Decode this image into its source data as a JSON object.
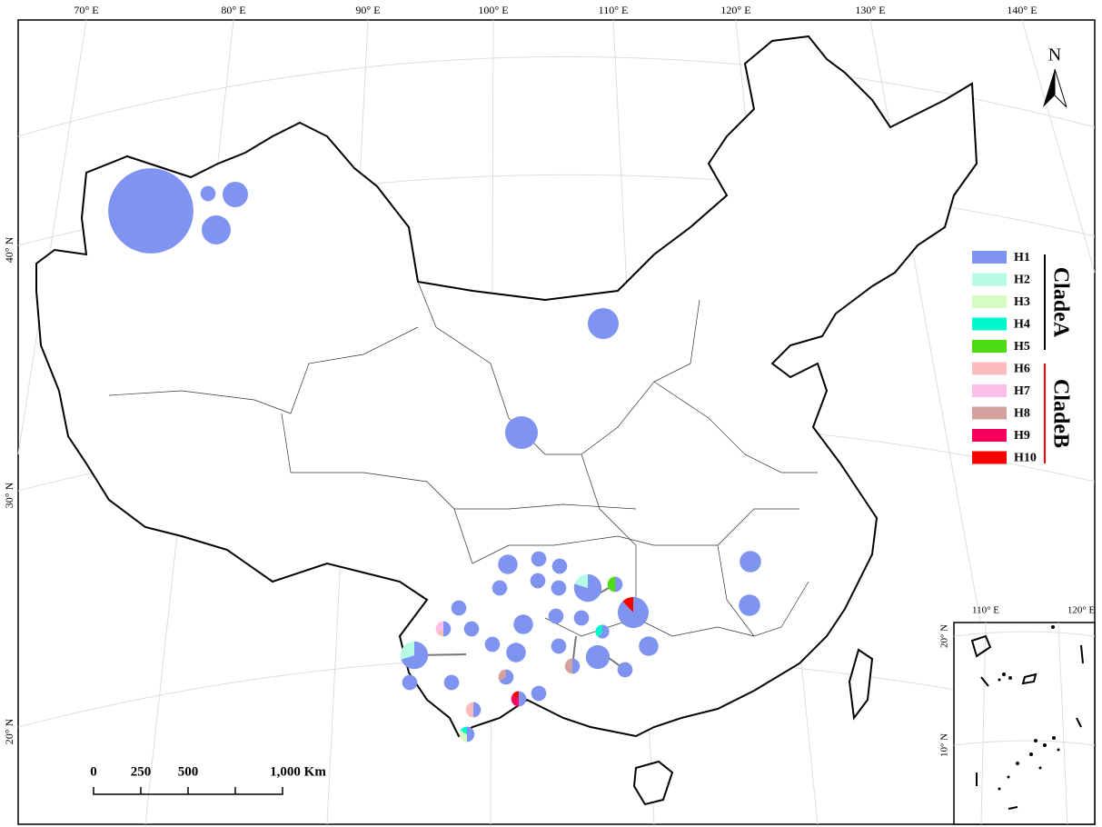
{
  "map": {
    "longitude_labels": [
      "70° E",
      "80° E",
      "90° E",
      "100° E",
      "110° E",
      "120° E",
      "130° E",
      "140° E"
    ],
    "latitude_labels": [
      "40° N",
      "30° N",
      "20° N"
    ],
    "inset": {
      "longitude_labels": [
        "110° E",
        "120° E"
      ],
      "latitude_labels": [
        "20° N",
        "10° N"
      ]
    },
    "north_label": "N",
    "scale_bar": {
      "labels": [
        "0",
        "250",
        "500",
        "1,000 Km"
      ]
    },
    "legend": {
      "haplotypes": [
        {
          "name": "H1",
          "color": "#7f93f0"
        },
        {
          "name": "H2",
          "color": "#b5fbe6"
        },
        {
          "name": "H3",
          "color": "#d6fcc2"
        },
        {
          "name": "H4",
          "color": "#00f8cc"
        },
        {
          "name": "H5",
          "color": "#4cdc10"
        },
        {
          "name": "H6",
          "color": "#fcbcbc"
        },
        {
          "name": "H7",
          "color": "#fcbde6"
        },
        {
          "name": "H8",
          "color": "#d4a19e"
        },
        {
          "name": "H9",
          "color": "#f5005a"
        },
        {
          "name": "H10",
          "color": "#fb0000"
        }
      ],
      "clades": [
        {
          "name": "CladeA",
          "color": "#000000"
        },
        {
          "name": "CladeB",
          "color": "#ff0000"
        }
      ]
    },
    "populations": [
      {
        "counts": [
          190,
          0,
          0,
          0,
          0,
          0,
          0,
          0,
          0,
          0
        ]
      },
      {
        "counts": [
          6,
          0,
          0,
          0,
          0,
          0,
          0,
          0,
          0,
          0
        ]
      },
      {
        "counts": [
          17,
          0,
          0,
          0,
          0,
          0,
          0,
          0,
          0,
          0
        ]
      },
      {
        "counts": [
          22,
          0,
          0,
          0,
          0,
          0,
          0,
          0,
          0,
          0
        ]
      },
      {
        "counts": [
          25,
          0,
          0,
          0,
          0,
          0,
          0,
          0,
          0,
          0
        ]
      },
      {
        "counts": [
          28,
          0,
          0,
          0,
          0,
          0,
          0,
          0,
          0,
          0
        ]
      },
      {
        "counts": [
          12,
          0,
          0,
          0,
          0,
          0,
          0,
          0,
          0,
          0
        ]
      },
      {
        "counts": [
          12,
          0,
          0,
          0,
          0,
          0,
          0,
          0,
          0,
          0
        ]
      },
      {
        "counts": [
          10,
          0,
          0,
          0,
          0,
          0,
          0,
          0,
          0,
          0
        ]
      },
      {
        "counts": [
          6,
          0,
          0,
          0,
          0,
          0,
          0,
          0,
          0,
          0
        ]
      },
      {
        "counts": [
          6,
          0,
          0,
          0,
          0,
          0,
          0,
          0,
          0,
          0
        ]
      },
      {
        "counts": [
          6,
          0,
          0,
          0,
          0,
          0,
          0,
          0,
          0,
          0
        ]
      },
      {
        "counts": [
          6,
          0,
          0,
          0,
          0,
          0,
          0,
          0,
          0,
          0
        ]
      },
      {
        "counts": [
          6,
          0,
          0,
          0,
          0,
          0,
          0,
          0,
          0,
          0
        ]
      },
      {
        "counts": [
          16,
          4,
          0,
          0,
          0,
          0,
          0,
          0,
          0,
          0
        ]
      },
      {
        "counts": [
          3,
          0,
          0,
          0,
          3,
          0,
          0,
          0,
          0,
          0
        ]
      },
      {
        "counts": [
          22,
          0,
          0,
          0,
          0,
          0,
          0,
          0,
          0,
          3
        ]
      },
      {
        "counts": [
          6,
          0,
          0,
          0,
          0,
          0,
          0,
          0,
          0,
          0
        ]
      },
      {
        "counts": [
          3,
          0,
          0,
          0,
          0,
          1,
          2,
          0,
          0,
          0
        ]
      },
      {
        "counts": [
          6,
          0,
          0,
          0,
          0,
          0,
          0,
          0,
          0,
          0
        ]
      },
      {
        "counts": [
          10,
          0,
          0,
          0,
          0,
          0,
          0,
          0,
          0,
          0
        ]
      },
      {
        "counts": [
          6,
          0,
          0,
          0,
          0,
          0,
          0,
          0,
          0,
          0
        ]
      },
      {
        "counts": [
          6,
          0,
          0,
          0,
          0,
          0,
          0,
          0,
          0,
          0
        ]
      },
      {
        "counts": [
          3,
          0,
          0,
          2,
          0,
          0,
          0,
          0,
          0,
          0
        ]
      },
      {
        "counts": [
          10,
          0,
          0,
          0,
          0,
          0,
          0,
          0,
          0,
          0
        ]
      },
      {
        "counts": [
          14,
          6,
          0,
          0,
          0,
          0,
          0,
          0,
          0,
          0
        ]
      },
      {
        "counts": [
          6,
          0,
          0,
          0,
          0,
          0,
          0,
          0,
          0,
          0
        ]
      },
      {
        "counts": [
          10,
          0,
          0,
          0,
          0,
          0,
          0,
          0,
          0,
          0
        ]
      },
      {
        "counts": [
          6,
          0,
          0,
          0,
          0,
          0,
          0,
          0,
          0,
          0
        ]
      },
      {
        "counts": [
          15,
          0,
          0,
          0,
          0,
          0,
          0,
          0,
          0,
          0
        ]
      },
      {
        "counts": [
          6,
          0,
          0,
          0,
          0,
          0,
          0,
          0,
          0,
          0
        ]
      },
      {
        "counts": [
          3,
          0,
          0,
          0,
          0,
          0,
          0,
          3,
          0,
          0
        ]
      },
      {
        "counts": [
          4,
          0,
          0,
          0,
          0,
          0,
          0,
          2,
          0,
          0
        ]
      },
      {
        "counts": [
          6,
          0,
          0,
          0,
          0,
          0,
          0,
          0,
          0,
          0
        ]
      },
      {
        "counts": [
          6,
          0,
          0,
          0,
          0,
          0,
          0,
          0,
          0,
          0
        ]
      },
      {
        "counts": [
          6,
          0,
          0,
          0,
          0,
          0,
          0,
          0,
          0,
          0
        ]
      },
      {
        "counts": [
          3,
          0,
          0,
          0,
          0,
          0,
          0,
          0,
          2,
          1
        ]
      },
      {
        "counts": [
          3,
          0,
          0,
          0,
          0,
          3,
          0,
          0,
          0,
          0
        ]
      },
      {
        "counts": [
          3,
          0,
          2,
          1,
          0,
          0,
          0,
          0,
          0,
          0
        ]
      }
    ]
  }
}
